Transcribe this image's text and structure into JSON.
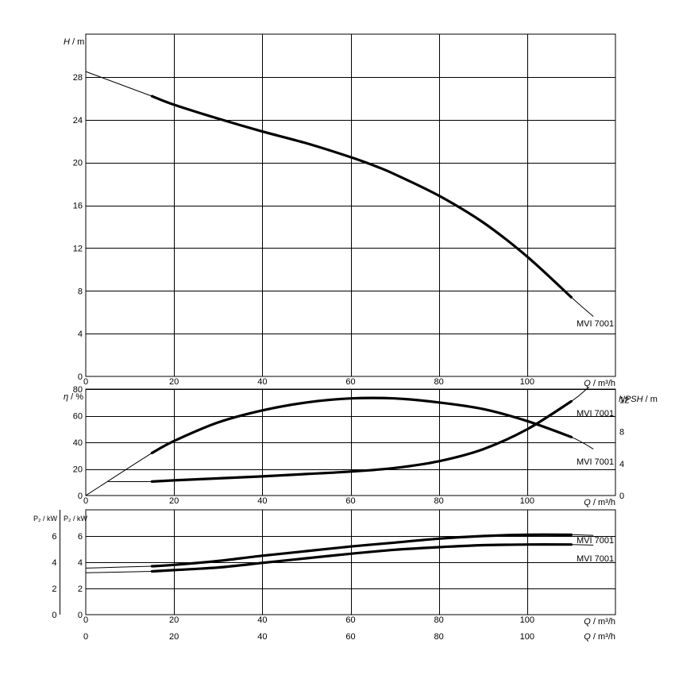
{
  "chart_data": [
    {
      "type": "line",
      "panel": "head",
      "ylabel": "H / m",
      "xlabel": "Q / m³/h",
      "xlim": [
        0,
        120
      ],
      "ylim": [
        0,
        32
      ],
      "x_ticks": [
        0,
        20,
        40,
        60,
        80,
        100
      ],
      "y_ticks": [
        0,
        4,
        8,
        12,
        16,
        20,
        24,
        28
      ],
      "grid": true,
      "series": [
        {
          "name": "MVI 7001",
          "x": [
            0,
            15,
            20,
            30,
            40,
            50,
            60,
            66,
            70,
            80,
            90,
            100,
            110,
            115
          ],
          "y": [
            28.5,
            26.2,
            25.4,
            24.1,
            22.9,
            21.8,
            20.5,
            19.6,
            18.9,
            16.9,
            14.4,
            11.2,
            7.4,
            5.6
          ],
          "thick_range": [
            15,
            110
          ]
        }
      ]
    },
    {
      "type": "line",
      "panel": "efficiency_npsh",
      "ylabel": "η / %",
      "ylabel_right": "NPSH / m",
      "xlabel": "Q / m³/h",
      "xlim": [
        0,
        120
      ],
      "ylim": [
        0,
        80
      ],
      "ylim_right": [
        0,
        13.33
      ],
      "x_ticks": [
        0,
        20,
        40,
        60,
        80,
        100
      ],
      "y_ticks": [
        0,
        20,
        40,
        60,
        80
      ],
      "y_ticks_right": [
        0,
        4,
        8,
        12
      ],
      "grid": true,
      "series": [
        {
          "name": "MVI 7001",
          "axis": "left",
          "x": [
            0,
            15,
            20,
            30,
            40,
            50,
            60,
            70,
            80,
            90,
            100,
            110,
            115
          ],
          "y": [
            0,
            32,
            41,
            55,
            64,
            70,
            73,
            73,
            70,
            65,
            56,
            44,
            35
          ],
          "thick_range": [
            15,
            110
          ]
        },
        {
          "name": "MVI 7001",
          "axis": "right",
          "x": [
            5,
            15,
            20,
            30,
            40,
            50,
            60,
            70,
            80,
            90,
            100,
            110,
            114
          ],
          "y": [
            1.75,
            1.75,
            1.9,
            2.15,
            2.4,
            2.7,
            3.0,
            3.45,
            4.3,
            5.8,
            8.3,
            11.8,
            13.6
          ],
          "thick_range": [
            15,
            110
          ]
        }
      ]
    },
    {
      "type": "line",
      "panel": "power",
      "ylabel": "P₂ / kW",
      "ylabel_outer": "P₂ / kW",
      "xlabel": "Q / m³/h",
      "xlabel_bottom": "Q / m³/h",
      "xlim": [
        0,
        120
      ],
      "ylim": [
        0,
        8
      ],
      "x_ticks": [
        0,
        20,
        40,
        60,
        80,
        100
      ],
      "y_ticks": [
        0,
        2,
        4,
        6
      ],
      "y_ticks_outer": [
        0,
        2,
        4,
        6
      ],
      "grid": true,
      "series": [
        {
          "name": "MVI 7001",
          "x": [
            0,
            15,
            20,
            30,
            40,
            50,
            60,
            70,
            80,
            90,
            100,
            110,
            115
          ],
          "y": [
            3.55,
            3.7,
            3.8,
            4.1,
            4.5,
            4.85,
            5.2,
            5.5,
            5.8,
            6.0,
            6.1,
            6.1,
            6.05
          ],
          "thick_range": [
            15,
            110
          ]
        },
        {
          "name": "MVI 7001",
          "x": [
            0,
            15,
            20,
            30,
            40,
            50,
            60,
            70,
            80,
            90,
            100,
            110,
            115
          ],
          "y": [
            3.2,
            3.3,
            3.4,
            3.6,
            3.95,
            4.3,
            4.65,
            4.95,
            5.15,
            5.3,
            5.35,
            5.35,
            5.3
          ],
          "thick_range": [
            15,
            110
          ]
        }
      ]
    }
  ]
}
